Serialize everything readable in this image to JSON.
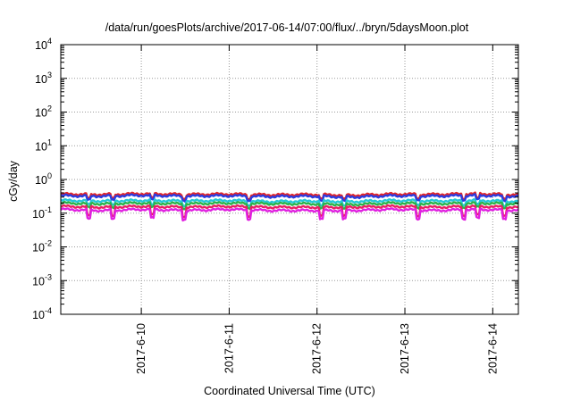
{
  "chart_data": {
    "type": "line",
    "title": "/data/run/goesPlots/archive/2017-06-14/07:00/flux/../bryn/5daysMoon.plot",
    "xlabel": "Coordinated Universal Time (UTC)",
    "ylabel": "cGy/day",
    "y_scale": "log",
    "ylim": [
      0.0001,
      10000
    ],
    "y_ticks": [
      {
        "value": 0.0001,
        "base": "10",
        "exp": "-4"
      },
      {
        "value": 0.001,
        "base": "10",
        "exp": "-3"
      },
      {
        "value": 0.01,
        "base": "10",
        "exp": "-2"
      },
      {
        "value": 0.1,
        "base": "10",
        "exp": "-1"
      },
      {
        "value": 1,
        "base": "10",
        "exp": "0"
      },
      {
        "value": 10,
        "base": "10",
        "exp": "1"
      },
      {
        "value": 100,
        "base": "10",
        "exp": "2"
      },
      {
        "value": 1000,
        "base": "10",
        "exp": "3"
      },
      {
        "value": 10000,
        "base": "10",
        "exp": "4"
      }
    ],
    "xlim": [
      "2017-06-09T02:00",
      "2017-06-14T07:00"
    ],
    "x_ticks": [
      "2017-6-10",
      "2017-6-11",
      "2017-6-12",
      "2017-6-13",
      "2017-6-14"
    ],
    "grid": true,
    "series": [
      {
        "color": "#e0242a",
        "levels": [
          0.37,
          0.36,
          0.38,
          0.36,
          0.37,
          0.35,
          0.36,
          0.34,
          0.37,
          0.36,
          0.38,
          0.35
        ]
      },
      {
        "color": "#2b3ce0",
        "levels": [
          0.33,
          0.32,
          0.34,
          0.32,
          0.33,
          0.31,
          0.32,
          0.3,
          0.33,
          0.32,
          0.34,
          0.31
        ]
      },
      {
        "color": "#25c8d8",
        "levels": [
          0.24,
          0.23,
          0.24,
          0.23,
          0.24,
          0.22,
          0.23,
          0.22,
          0.24,
          0.23,
          0.24,
          0.22
        ]
      },
      {
        "color": "#2bb34a",
        "levels": [
          0.2,
          0.19,
          0.2,
          0.19,
          0.2,
          0.19,
          0.19,
          0.18,
          0.2,
          0.19,
          0.2,
          0.19
        ]
      },
      {
        "color": "#e91e63",
        "levels": [
          0.16,
          0.15,
          0.16,
          0.15,
          0.16,
          0.15,
          0.15,
          0.15,
          0.16,
          0.15,
          0.16,
          0.15
        ]
      },
      {
        "color": "#e020e0",
        "levels": [
          0.13,
          0.12,
          0.13,
          0.12,
          0.13,
          0.12,
          0.12,
          0.12,
          0.13,
          0.12,
          0.13,
          0.12
        ]
      }
    ]
  }
}
